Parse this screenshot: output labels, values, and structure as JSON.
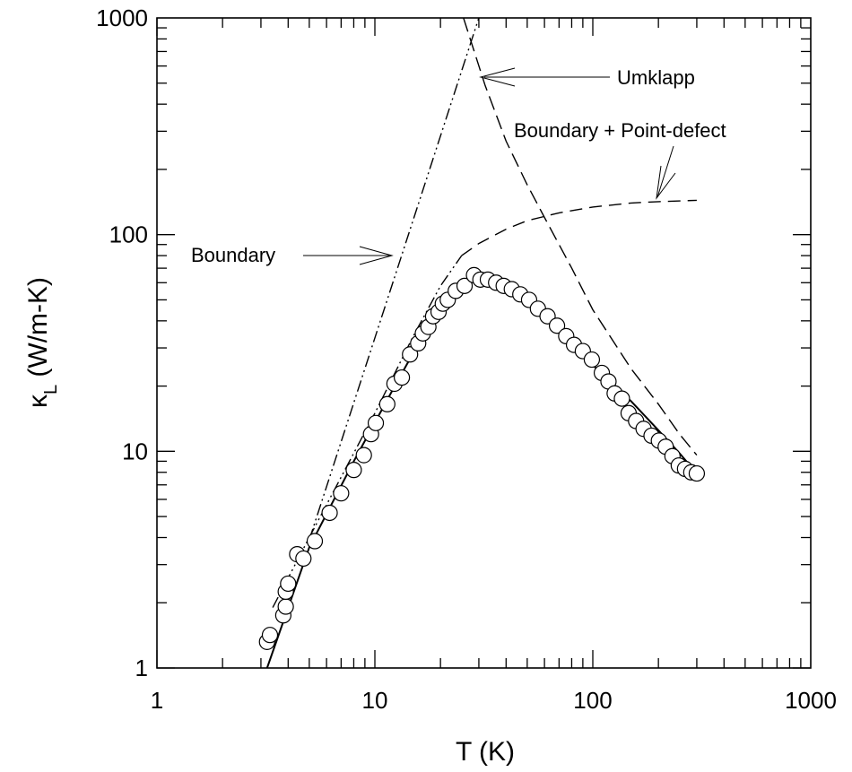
{
  "chart_data": {
    "type": "scatter",
    "xscale": "log",
    "yscale": "log",
    "xlim": [
      1,
      1000
    ],
    "ylim": [
      1,
      1000
    ],
    "xlabel": "T (K)",
    "ylabel": {
      "symbol": "κ",
      "subscript": "L",
      "rest": " (W/m-K)"
    },
    "xticks": [
      1,
      10,
      100,
      1000
    ],
    "xtick_labels": [
      "1",
      "10",
      "100",
      "1000"
    ],
    "yticks": [
      1,
      10,
      100,
      1000
    ],
    "ytick_labels": [
      "1",
      "10",
      "100",
      "1000"
    ],
    "grid": false,
    "series": [
      {
        "style": "open-circles",
        "points": [
          [
            3.2,
            1.32
          ],
          [
            3.3,
            1.42
          ],
          [
            3.8,
            1.75
          ],
          [
            3.9,
            1.92
          ],
          [
            3.9,
            2.25
          ],
          [
            4.0,
            2.45
          ],
          [
            4.4,
            3.35
          ],
          [
            4.7,
            3.2
          ],
          [
            5.3,
            3.85
          ],
          [
            6.2,
            5.2
          ],
          [
            7.0,
            6.4
          ],
          [
            8.0,
            8.2
          ],
          [
            8.9,
            9.6
          ],
          [
            9.6,
            12
          ],
          [
            10.1,
            13.5
          ],
          [
            11.4,
            16.5
          ],
          [
            12.3,
            20.5
          ],
          [
            13.3,
            21.9
          ],
          [
            14.5,
            28
          ],
          [
            15.8,
            31.5
          ],
          [
            16.6,
            35
          ],
          [
            17.6,
            37.5
          ],
          [
            18.5,
            42
          ],
          [
            19.6,
            44
          ],
          [
            20.5,
            48
          ],
          [
            21.6,
            50
          ],
          [
            23.5,
            55
          ],
          [
            25.8,
            58
          ],
          [
            28.5,
            65
          ],
          [
            30.5,
            62
          ],
          [
            33,
            62
          ],
          [
            36,
            60
          ],
          [
            39,
            58
          ],
          [
            42.5,
            56
          ],
          [
            46.5,
            53
          ],
          [
            51,
            50
          ],
          [
            56,
            45.5
          ],
          [
            62,
            42
          ],
          [
            68.5,
            38
          ],
          [
            75.5,
            34
          ],
          [
            82,
            31
          ],
          [
            90,
            29
          ],
          [
            99,
            26.5
          ],
          [
            110,
            23
          ],
          [
            118,
            21
          ],
          [
            126,
            18.5
          ],
          [
            136,
            17.5
          ],
          [
            146,
            15
          ],
          [
            158,
            13.8
          ],
          [
            171,
            12.7
          ],
          [
            186,
            11.8
          ],
          [
            201,
            11.2
          ],
          [
            216,
            10.5
          ],
          [
            232,
            9.5
          ],
          [
            248,
            8.6
          ],
          [
            265,
            8.3
          ],
          [
            283,
            8.0
          ],
          [
            300,
            7.9
          ]
        ]
      },
      {
        "style": "solid",
        "points": [
          [
            3.2,
            1.0
          ],
          [
            5,
            3.6
          ],
          [
            8,
            9.0
          ],
          [
            12,
            19
          ],
          [
            16,
            32
          ],
          [
            20,
            46
          ],
          [
            25,
            58
          ],
          [
            30,
            63
          ],
          [
            35,
            62
          ],
          [
            45,
            55
          ],
          [
            60,
            44
          ],
          [
            80,
            32
          ],
          [
            100,
            25
          ],
          [
            150,
            17
          ],
          [
            200,
            12.5
          ],
          [
            250,
            9.8
          ],
          [
            300,
            7.9
          ]
        ]
      },
      {
        "style": "dash-dot-dot",
        "name_ref": "Boundary",
        "points": [
          [
            5,
            3.9
          ],
          [
            30,
            1000
          ]
        ]
      },
      {
        "style": "dash-dot-dot",
        "points": [
          [
            3.4,
            1.9
          ],
          [
            5,
            4.0
          ],
          [
            10,
            15
          ],
          [
            15,
            34
          ],
          [
            20,
            58
          ],
          [
            25,
            80
          ]
        ]
      },
      {
        "style": "long-dash",
        "name_ref": "Umklapp",
        "points": [
          [
            25.5,
            1000
          ],
          [
            32,
            490
          ],
          [
            40,
            270
          ],
          [
            50,
            170
          ],
          [
            60,
            120
          ],
          [
            80,
            70
          ],
          [
            100,
            45
          ],
          [
            150,
            24
          ],
          [
            200,
            16.5
          ],
          [
            250,
            12
          ],
          [
            300,
            9.6
          ]
        ]
      },
      {
        "style": "dashed",
        "name_ref": "Boundary + Point-defect",
        "points": [
          [
            25,
            80
          ],
          [
            30,
            91
          ],
          [
            40,
            106
          ],
          [
            50,
            116
          ],
          [
            70,
            126
          ],
          [
            100,
            134
          ],
          [
            150,
            140
          ],
          [
            200,
            142
          ],
          [
            300,
            144
          ]
        ]
      }
    ],
    "annotations": [
      {
        "text": "Umklapp"
      },
      {
        "text": "Boundary + Point-defect"
      },
      {
        "text": "Boundary"
      }
    ]
  }
}
